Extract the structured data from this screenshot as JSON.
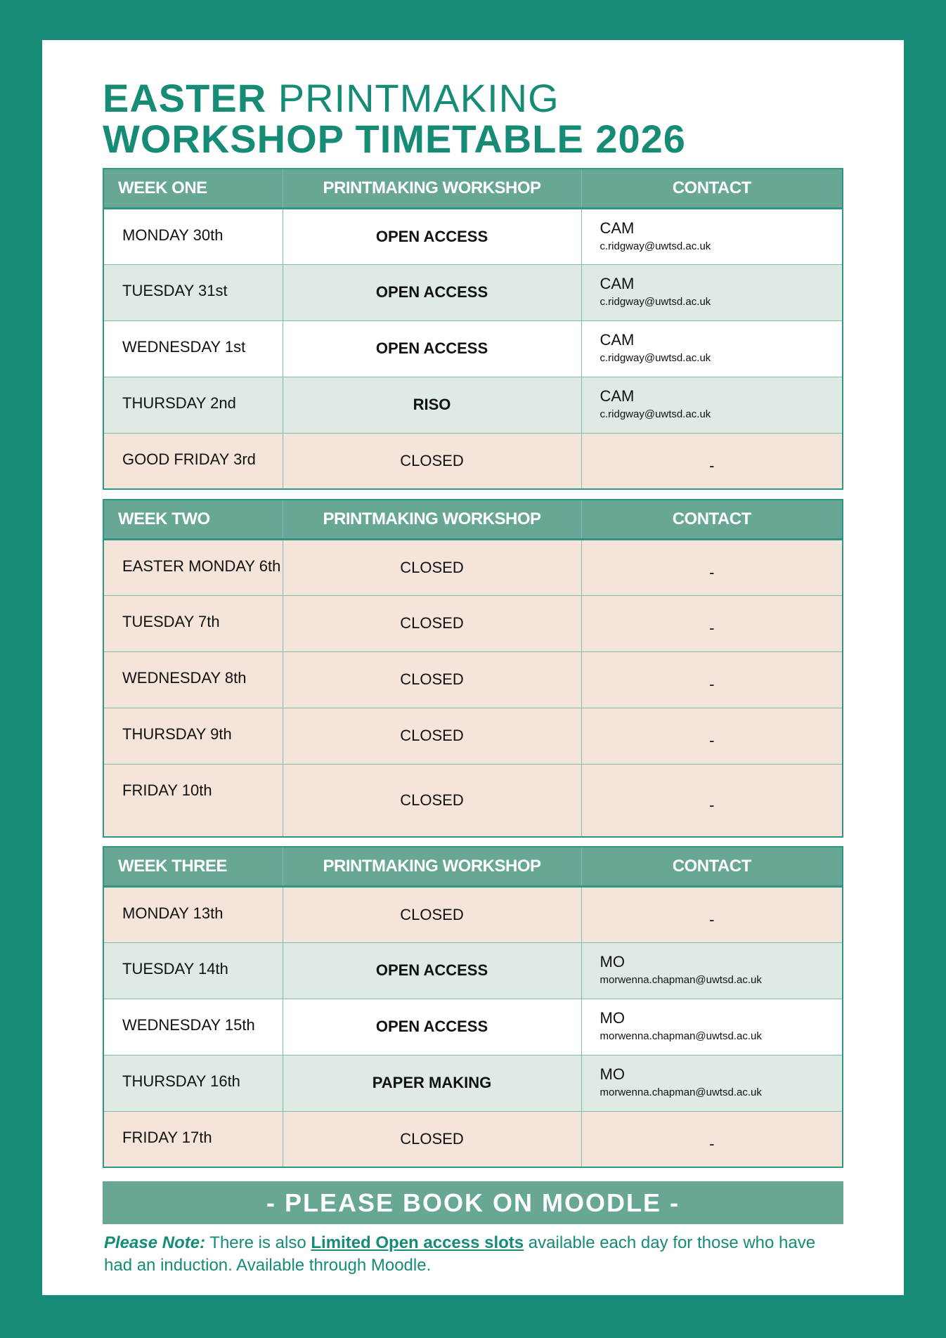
{
  "title": {
    "line1_bold": "EASTER",
    "line1_light": "PRINTMAKING",
    "line2": "WORKSHOP TIMETABLE 2026"
  },
  "colors": {
    "brand": "#168b76",
    "header": "#68a796",
    "open": "#e0eae5",
    "closed": "#f5e4da"
  },
  "weeks": [
    {
      "label": "WEEK ONE",
      "col2": "PRINTMAKING WORKSHOP",
      "col3": "CONTACT",
      "rows": [
        {
          "day": "MONDAY 30th",
          "workshop": "OPEN ACCESS",
          "name": "CAM",
          "email": "c.ridgway@uwtsd.ac.uk"
        },
        {
          "day": "TUESDAY 31st",
          "workshop": "OPEN ACCESS",
          "name": "CAM",
          "email": "c.ridgway@uwtsd.ac.uk"
        },
        {
          "day": "WEDNESDAY 1st",
          "workshop": "OPEN ACCESS",
          "name": "CAM",
          "email": "c.ridgway@uwtsd.ac.uk"
        },
        {
          "day": "THURSDAY 2nd",
          "workshop": "RISO",
          "name": "CAM",
          "email": "c.ridgway@uwtsd.ac.uk"
        },
        {
          "day": "GOOD FRIDAY 3rd",
          "workshop": "CLOSED",
          "contact": "-"
        }
      ]
    },
    {
      "label": "WEEK TWO",
      "col2": "PRINTMAKING WORKSHOP",
      "col3": "CONTACT",
      "rows": [
        {
          "day": "EASTER MONDAY 6th",
          "workshop": "CLOSED",
          "contact": "-"
        },
        {
          "day": "TUESDAY 7th",
          "workshop": "CLOSED",
          "contact": "-"
        },
        {
          "day": "WEDNESDAY 8th",
          "workshop": "CLOSED",
          "contact": "-"
        },
        {
          "day": "THURSDAY 9th",
          "workshop": "CLOSED",
          "contact": "-"
        },
        {
          "day": "FRIDAY 10th",
          "workshop": "CLOSED",
          "contact": "-"
        }
      ]
    },
    {
      "label": "WEEK THREE",
      "col2": "PRINTMAKING WORKSHOP",
      "col3": "CONTACT",
      "rows": [
        {
          "day": "MONDAY 13th",
          "workshop": "CLOSED",
          "contact": "-"
        },
        {
          "day": "TUESDAY 14th",
          "workshop": "OPEN ACCESS",
          "name": "MO",
          "email": "morwenna.chapman@uwtsd.ac.uk"
        },
        {
          "day": "WEDNESDAY 15th",
          "workshop": "OPEN ACCESS",
          "name": "MO",
          "email": "morwenna.chapman@uwtsd.ac.uk"
        },
        {
          "day": "THURSDAY 16th",
          "workshop": "PAPER MAKING",
          "name": "MO",
          "email": "morwenna.chapman@uwtsd.ac.uk"
        },
        {
          "day": "FRIDAY 17th",
          "workshop": "CLOSED",
          "contact": "-"
        }
      ]
    }
  ],
  "banner": "- PLEASE BOOK ON MOODLE -",
  "note": {
    "label": "Please Note:",
    "text1": " There is also ",
    "link": "Limited Open access slots",
    "text2": " available each day for those who have had an induction. Available through Moodle."
  }
}
